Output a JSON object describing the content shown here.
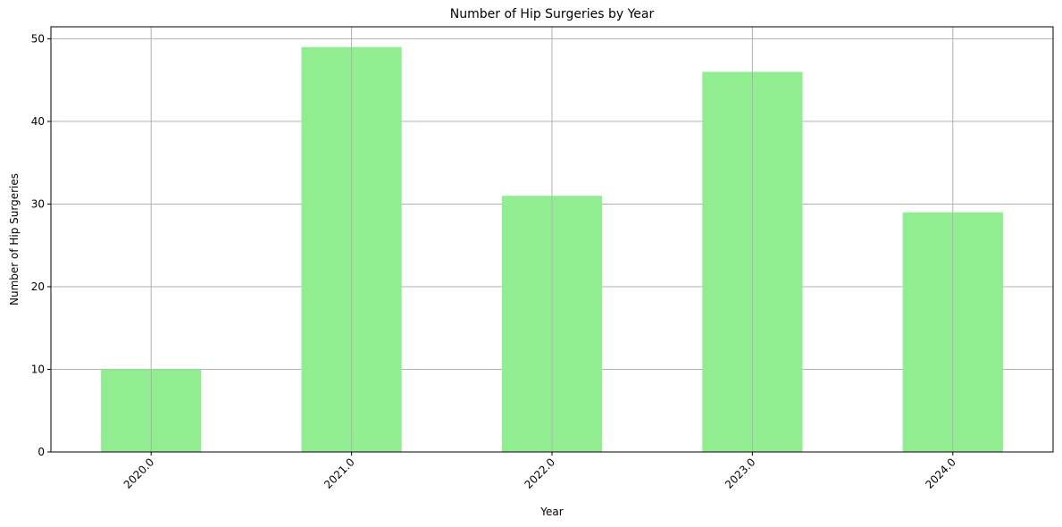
{
  "chart_data": {
    "type": "bar",
    "title": "Number of Hip Surgeries by Year",
    "xlabel": "Year",
    "ylabel": "Number of Hip Surgeries",
    "categories": [
      "2020.0",
      "2021.0",
      "2022.0",
      "2023.0",
      "2024.0"
    ],
    "values": [
      10,
      49,
      31,
      46,
      29
    ],
    "ylim": [
      0,
      51.45
    ],
    "yticks": [
      0,
      10,
      20,
      30,
      40,
      50
    ],
    "grid": true,
    "bar_color": "#90ee90",
    "grid_color": "#b0b0b0",
    "xtick_rotation_deg": 45
  }
}
